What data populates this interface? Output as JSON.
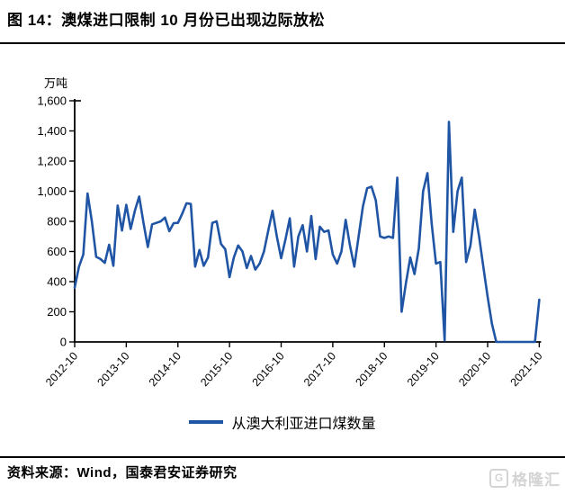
{
  "header": {
    "title": "图 14：澳煤进口限制 10 月份已出现边际放松"
  },
  "chart_data": {
    "type": "line",
    "unit_label": "万吨",
    "x_start_month": "2012-10",
    "x_tick_labels": [
      "2012-10",
      "2013-10",
      "2014-10",
      "2015-10",
      "2016-10",
      "2017-10",
      "2018-10",
      "2019-10",
      "2020-10",
      "2021-10"
    ],
    "ylim": [
      0,
      1600
    ],
    "y_ticks": [
      0,
      200,
      400,
      600,
      800,
      1000,
      1200,
      1400,
      1600
    ],
    "y_tick_labels": [
      "0",
      "200",
      "400",
      "600",
      "800",
      "1,000",
      "1,200",
      "1,400",
      "1,600"
    ],
    "grid": false,
    "legend_position": "bottom",
    "series": [
      {
        "name": "从澳大利亚进口煤数量",
        "color": "#1f55a4",
        "monthly_values": [
          360,
          500,
          580,
          985,
          800,
          565,
          550,
          525,
          645,
          505,
          905,
          740,
          910,
          750,
          870,
          965,
          790,
          630,
          780,
          790,
          800,
          825,
          735,
          788,
          790,
          850,
          920,
          915,
          500,
          610,
          505,
          560,
          790,
          800,
          650,
          615,
          430,
          560,
          640,
          600,
          490,
          570,
          480,
          520,
          600,
          740,
          870,
          700,
          555,
          680,
          820,
          500,
          700,
          775,
          600,
          835,
          550,
          765,
          730,
          740,
          580,
          520,
          600,
          810,
          640,
          500,
          700,
          900,
          1020,
          1030,
          940,
          700,
          690,
          700,
          690,
          1090,
          200,
          390,
          560,
          450,
          620,
          1000,
          1120,
          780,
          520,
          530,
          10,
          1460,
          730,
          1000,
          1090,
          530,
          640,
          878,
          700,
          500,
          300,
          120,
          0,
          0,
          0,
          0,
          0,
          0,
          0,
          0,
          0,
          0,
          280
        ]
      }
    ]
  },
  "legend": {
    "label": "从澳大利亚进口煤数量"
  },
  "footer": {
    "source": "资料来源：Wind，国泰君安证券研究"
  },
  "watermark": {
    "icon_letter": "G",
    "text": "格隆汇"
  },
  "colors": {
    "accent": "#1f55a4",
    "axis": "#000000",
    "watermark_gray": "#d4d4d4"
  }
}
